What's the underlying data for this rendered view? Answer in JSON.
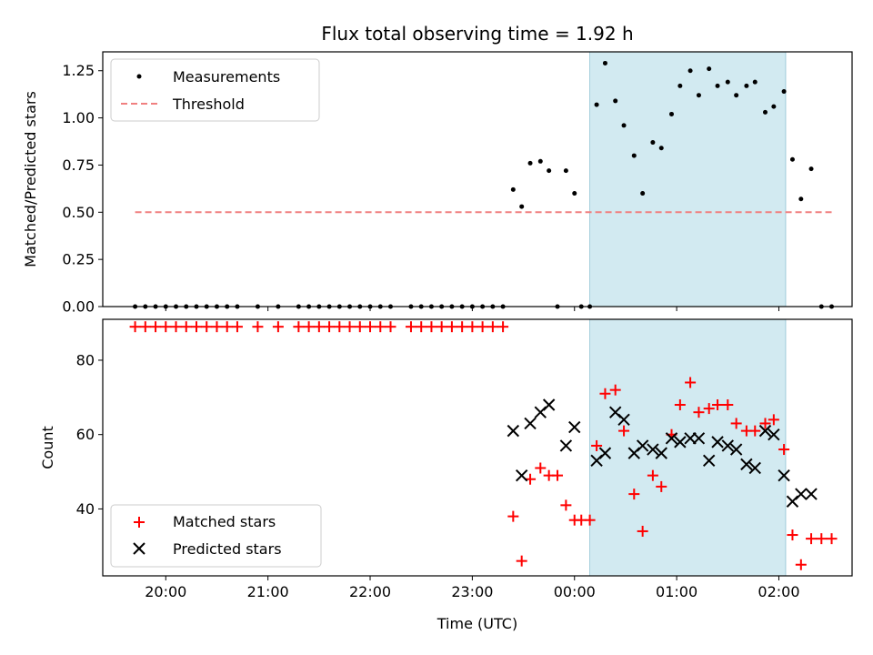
{
  "chart_data": [
    {
      "type": "scatter",
      "title": "Flux total observing time = 1.92 h",
      "xlabel": "",
      "ylabel": "Matched/Predicted stars",
      "ylim": [
        0.0,
        1.35
      ],
      "yticks": [
        "0.00",
        "0.25",
        "0.50",
        "0.75",
        "1.00",
        "1.25"
      ],
      "ytick_values": [
        0.0,
        0.25,
        0.5,
        0.75,
        1.0,
        1.25
      ],
      "legend_position": "upper-left",
      "shaded_interval": {
        "start": "00:09",
        "end": "02:04",
        "color": "#add8e6"
      },
      "series": [
        {
          "name": "Measurements",
          "kind": "points",
          "color": "#000000",
          "points": [
            [
              "19:42",
              0
            ],
            [
              "19:48",
              0
            ],
            [
              "19:54",
              0
            ],
            [
              "20:00",
              0
            ],
            [
              "20:06",
              0
            ],
            [
              "20:12",
              0
            ],
            [
              "20:18",
              0
            ],
            [
              "20:24",
              0
            ],
            [
              "20:30",
              0
            ],
            [
              "20:36",
              0
            ],
            [
              "20:42",
              0
            ],
            [
              "20:54",
              0
            ],
            [
              "21:06",
              0
            ],
            [
              "21:18",
              0
            ],
            [
              "21:24",
              0
            ],
            [
              "21:30",
              0
            ],
            [
              "21:36",
              0
            ],
            [
              "21:42",
              0
            ],
            [
              "21:48",
              0
            ],
            [
              "21:54",
              0
            ],
            [
              "22:00",
              0
            ],
            [
              "22:06",
              0
            ],
            [
              "22:12",
              0
            ],
            [
              "22:24",
              0
            ],
            [
              "22:30",
              0
            ],
            [
              "22:36",
              0
            ],
            [
              "22:42",
              0
            ],
            [
              "22:48",
              0
            ],
            [
              "22:54",
              0
            ],
            [
              "23:00",
              0
            ],
            [
              "23:06",
              0
            ],
            [
              "23:12",
              0
            ],
            [
              "23:18",
              0
            ],
            [
              "23:24",
              0.62
            ],
            [
              "23:29",
              0.53
            ],
            [
              "23:34",
              0.76
            ],
            [
              "23:40",
              0.77
            ],
            [
              "23:45",
              0.72
            ],
            [
              "23:50",
              0
            ],
            [
              "23:55",
              0.72
            ],
            [
              "00:00",
              0.6
            ],
            [
              "00:04",
              0
            ],
            [
              "00:09",
              0
            ],
            [
              "00:13",
              1.07
            ],
            [
              "00:18",
              1.29
            ],
            [
              "00:24",
              1.09
            ],
            [
              "00:29",
              0.96
            ],
            [
              "00:35",
              0.8
            ],
            [
              "00:40",
              0.6
            ],
            [
              "00:46",
              0.87
            ],
            [
              "00:51",
              0.84
            ],
            [
              "00:57",
              1.02
            ],
            [
              "01:02",
              1.17
            ],
            [
              "01:08",
              1.25
            ],
            [
              "01:13",
              1.12
            ],
            [
              "01:19",
              1.26
            ],
            [
              "01:24",
              1.17
            ],
            [
              "01:30",
              1.19
            ],
            [
              "01:35",
              1.12
            ],
            [
              "01:41",
              1.17
            ],
            [
              "01:46",
              1.19
            ],
            [
              "01:52",
              1.03
            ],
            [
              "01:57",
              1.06
            ],
            [
              "02:03",
              1.14
            ],
            [
              "02:08",
              0.78
            ],
            [
              "02:13",
              0.57
            ],
            [
              "02:19",
              0.73
            ],
            [
              "02:25",
              0
            ],
            [
              "02:31",
              0
            ]
          ]
        },
        {
          "name": "Threshold",
          "kind": "dashed-line",
          "color": "#f08080",
          "points": [
            [
              "19:42",
              0.5
            ],
            [
              "02:31",
              0.5
            ]
          ]
        }
      ]
    },
    {
      "type": "scatter",
      "title": "",
      "xlabel": "Time (UTC)",
      "ylabel": "Count",
      "ylim": [
        22,
        91
      ],
      "yticks": [
        "40",
        "60",
        "80"
      ],
      "ytick_values": [
        40,
        60,
        80
      ],
      "xticks": [
        "20:00",
        "21:00",
        "22:00",
        "23:00",
        "00:00",
        "01:00",
        "02:00"
      ],
      "xlim": [
        "19:23",
        "02:43"
      ],
      "legend_position": "lower-left",
      "shaded_interval": {
        "start": "00:09",
        "end": "02:04",
        "color": "#add8e6"
      },
      "series": [
        {
          "name": "Matched stars",
          "kind": "plus",
          "color": "#ff0000",
          "points": [
            [
              "19:42",
              89
            ],
            [
              "19:48",
              89
            ],
            [
              "19:54",
              89
            ],
            [
              "20:00",
              89
            ],
            [
              "20:06",
              89
            ],
            [
              "20:12",
              89
            ],
            [
              "20:18",
              89
            ],
            [
              "20:24",
              89
            ],
            [
              "20:30",
              89
            ],
            [
              "20:36",
              89
            ],
            [
              "20:42",
              89
            ],
            [
              "20:54",
              89
            ],
            [
              "21:06",
              89
            ],
            [
              "21:18",
              89
            ],
            [
              "21:24",
              89
            ],
            [
              "21:30",
              89
            ],
            [
              "21:36",
              89
            ],
            [
              "21:42",
              89
            ],
            [
              "21:48",
              89
            ],
            [
              "21:54",
              89
            ],
            [
              "22:00",
              89
            ],
            [
              "22:06",
              89
            ],
            [
              "22:12",
              89
            ],
            [
              "22:24",
              89
            ],
            [
              "22:30",
              89
            ],
            [
              "22:36",
              89
            ],
            [
              "22:42",
              89
            ],
            [
              "22:48",
              89
            ],
            [
              "22:54",
              89
            ],
            [
              "23:00",
              89
            ],
            [
              "23:06",
              89
            ],
            [
              "23:12",
              89
            ],
            [
              "23:18",
              89
            ],
            [
              "23:24",
              38
            ],
            [
              "23:29",
              26
            ],
            [
              "23:34",
              48
            ],
            [
              "23:40",
              51
            ],
            [
              "23:45",
              49
            ],
            [
              "23:50",
              49
            ],
            [
              "23:55",
              41
            ],
            [
              "00:00",
              37
            ],
            [
              "00:04",
              37
            ],
            [
              "00:09",
              37
            ],
            [
              "00:13",
              57
            ],
            [
              "00:18",
              71
            ],
            [
              "00:24",
              72
            ],
            [
              "00:29",
              61
            ],
            [
              "00:35",
              44
            ],
            [
              "00:40",
              34
            ],
            [
              "00:46",
              49
            ],
            [
              "00:51",
              46
            ],
            [
              "00:57",
              60
            ],
            [
              "01:02",
              68
            ],
            [
              "01:08",
              74
            ],
            [
              "01:13",
              66
            ],
            [
              "01:19",
              67
            ],
            [
              "01:24",
              68
            ],
            [
              "01:30",
              68
            ],
            [
              "01:35",
              63
            ],
            [
              "01:41",
              61
            ],
            [
              "01:46",
              61
            ],
            [
              "01:52",
              63
            ],
            [
              "01:57",
              64
            ],
            [
              "02:03",
              56
            ],
            [
              "02:08",
              33
            ],
            [
              "02:13",
              25
            ],
            [
              "02:19",
              32
            ],
            [
              "02:25",
              32
            ],
            [
              "02:31",
              32
            ]
          ]
        },
        {
          "name": "Predicted stars",
          "kind": "x",
          "color": "#000000",
          "points": [
            [
              "23:24",
              61
            ],
            [
              "23:29",
              49
            ],
            [
              "23:34",
              63
            ],
            [
              "23:40",
              66
            ],
            [
              "23:45",
              68
            ],
            [
              "23:55",
              57
            ],
            [
              "00:00",
              62
            ],
            [
              "00:13",
              53
            ],
            [
              "00:18",
              55
            ],
            [
              "00:24",
              66
            ],
            [
              "00:29",
              64
            ],
            [
              "00:35",
              55
            ],
            [
              "00:40",
              57
            ],
            [
              "00:46",
              56
            ],
            [
              "00:51",
              55
            ],
            [
              "00:57",
              59
            ],
            [
              "01:02",
              58
            ],
            [
              "01:08",
              59
            ],
            [
              "01:13",
              59
            ],
            [
              "01:19",
              53
            ],
            [
              "01:24",
              58
            ],
            [
              "01:30",
              57
            ],
            [
              "01:35",
              56
            ],
            [
              "01:41",
              52
            ],
            [
              "01:46",
              51
            ],
            [
              "01:52",
              61
            ],
            [
              "01:57",
              60
            ],
            [
              "02:03",
              49
            ],
            [
              "02:08",
              42
            ],
            [
              "02:13",
              44
            ],
            [
              "02:19",
              44
            ]
          ]
        }
      ]
    }
  ]
}
